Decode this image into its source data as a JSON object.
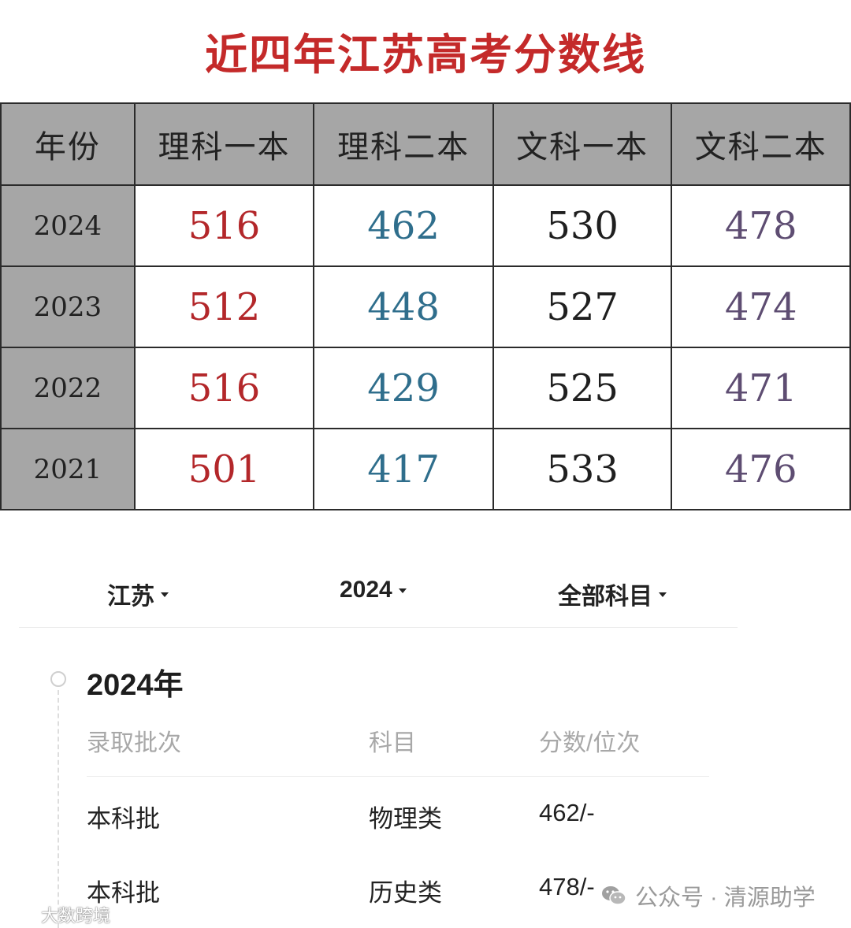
{
  "image_table": {
    "title": "近四年江苏高考分数线",
    "headers": [
      "年份",
      "理科一本",
      "理科二本",
      "文科一本",
      "文科二本"
    ],
    "rows": [
      {
        "year": "2024",
        "values": [
          "516",
          "462",
          "530",
          "478"
        ]
      },
      {
        "year": "2023",
        "values": [
          "512",
          "448",
          "527",
          "474"
        ]
      },
      {
        "year": "2022",
        "values": [
          "516",
          "429",
          "525",
          "471"
        ]
      },
      {
        "year": "2021",
        "values": [
          "501",
          "417",
          "533",
          "476"
        ]
      }
    ],
    "column_colors": [
      "#b3272a",
      "#2f6e8c",
      "#1f1f1f",
      "#5e4d72"
    ],
    "title_color": "#c42a2a"
  },
  "filters": {
    "province": "江苏",
    "year": "2024",
    "subject": "全部科目"
  },
  "results": {
    "year_heading": "2024年",
    "columns": {
      "batch": "录取批次",
      "subject": "科目",
      "score": "分数/位次"
    },
    "rows": [
      {
        "batch": "本科批",
        "subject": "物理类",
        "score": "462/-"
      },
      {
        "batch": "本科批",
        "subject": "历史类",
        "score": "478/-"
      }
    ]
  },
  "watermarks": {
    "right": "公众号 · 清源助学",
    "left": "大数跨境"
  }
}
